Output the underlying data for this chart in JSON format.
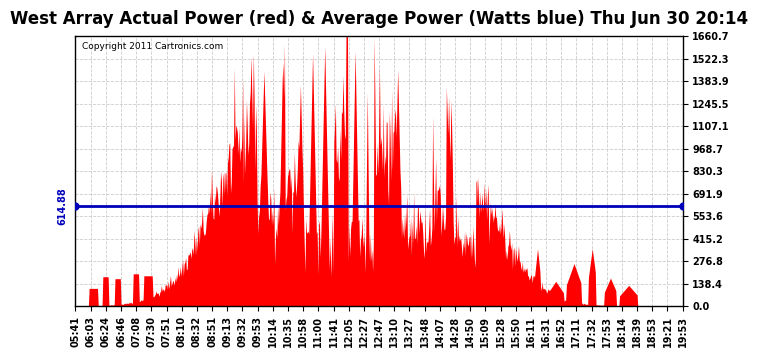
{
  "title": "West Array Actual Power (red) & Average Power (Watts blue) Thu Jun 30 20:14",
  "copyright": "Copyright 2011 Cartronics.com",
  "avg_power": 614.88,
  "ymax": 1660.7,
  "ymin": 0.0,
  "yticks": [
    0.0,
    138.4,
    276.8,
    415.2,
    553.6,
    691.9,
    830.3,
    968.7,
    1107.1,
    1245.5,
    1383.9,
    1522.3,
    1660.7
  ],
  "xtick_labels": [
    "05:41",
    "06:03",
    "06:24",
    "06:46",
    "07:08",
    "07:30",
    "07:51",
    "08:10",
    "08:32",
    "08:51",
    "09:13",
    "09:32",
    "09:53",
    "10:14",
    "10:35",
    "10:58",
    "11:00",
    "11:41",
    "12:05",
    "12:27",
    "12:47",
    "13:10",
    "13:27",
    "13:48",
    "14:07",
    "14:28",
    "14:50",
    "15:09",
    "15:28",
    "15:50",
    "16:11",
    "16:31",
    "16:52",
    "17:11",
    "17:32",
    "17:53",
    "18:14",
    "18:39",
    "18:53",
    "19:21",
    "19:53"
  ],
  "bg_color": "#ffffff",
  "fill_color": "#ff0000",
  "line_color": "#0000bb",
  "grid_color": "#cccccc",
  "title_fontsize": 12,
  "tick_fontsize": 7
}
